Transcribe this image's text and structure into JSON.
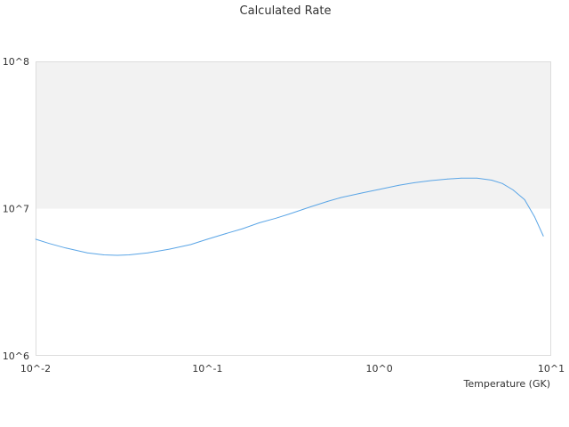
{
  "chart_data": {
    "type": "line",
    "title": "Calculated Rate",
    "xlabel": "Temperature (GK)",
    "ylabel": "",
    "x_scale": "log",
    "y_scale": "log",
    "xlim": [
      0.01,
      10
    ],
    "ylim": [
      1000000,
      100000000
    ],
    "x_ticks": [
      {
        "value": 0.01,
        "label": "10^-2"
      },
      {
        "value": 0.1,
        "label": "10^-1"
      },
      {
        "value": 1,
        "label": "10^0"
      },
      {
        "value": 10,
        "label": "10^1"
      }
    ],
    "y_ticks": [
      {
        "value": 1000000,
        "label": "10^6"
      },
      {
        "value": 10000000,
        "label": "10^7"
      },
      {
        "value": 100000000,
        "label": "10^8"
      }
    ],
    "grid": false,
    "shaded_band": {
      "y_from": 10000000,
      "y_to": 100000000,
      "color": "#f2f2f2"
    },
    "line_color": "#5aa5e6",
    "series": [
      {
        "values": [
          [
            0.01,
            6200000
          ],
          [
            0.012,
            5800000
          ],
          [
            0.015,
            5400000
          ],
          [
            0.02,
            5000000
          ],
          [
            0.025,
            4850000
          ],
          [
            0.03,
            4820000
          ],
          [
            0.035,
            4850000
          ],
          [
            0.045,
            5000000
          ],
          [
            0.06,
            5300000
          ],
          [
            0.08,
            5700000
          ],
          [
            0.1,
            6200000
          ],
          [
            0.13,
            6800000
          ],
          [
            0.16,
            7300000
          ],
          [
            0.2,
            8000000
          ],
          [
            0.25,
            8600000
          ],
          [
            0.3,
            9200000
          ],
          [
            0.4,
            10300000
          ],
          [
            0.5,
            11200000
          ],
          [
            0.6,
            11900000
          ],
          [
            0.8,
            12800000
          ],
          [
            1.0,
            13500000
          ],
          [
            1.3,
            14400000
          ],
          [
            1.6,
            15000000
          ],
          [
            2.0,
            15500000
          ],
          [
            2.5,
            15900000
          ],
          [
            3.0,
            16100000
          ],
          [
            3.7,
            16100000
          ],
          [
            4.5,
            15600000
          ],
          [
            5.2,
            14800000
          ],
          [
            6.0,
            13400000
          ],
          [
            7.0,
            11500000
          ],
          [
            8.0,
            8800000
          ],
          [
            9.0,
            6500000
          ]
        ]
      }
    ]
  }
}
